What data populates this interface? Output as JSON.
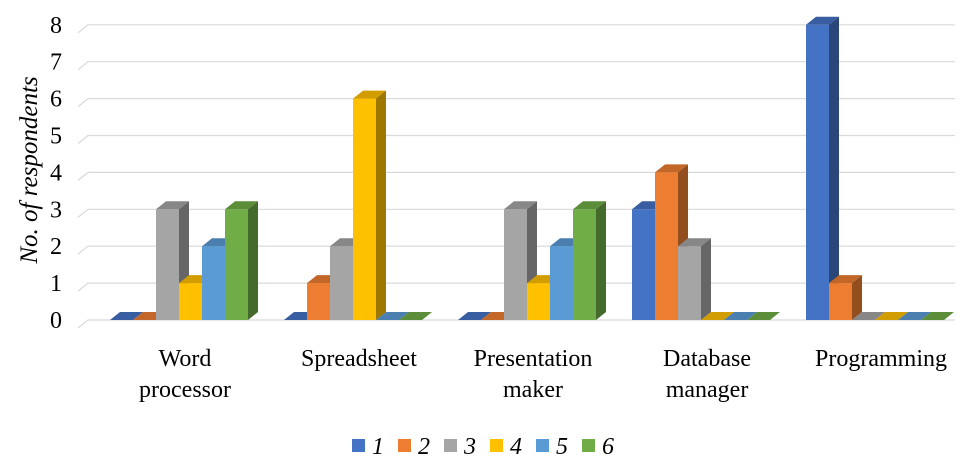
{
  "chart_data": {
    "type": "bar",
    "style": "3d-clustered-column",
    "ylabel": "No. of respondents",
    "xlabel": "",
    "ylim": [
      0,
      8
    ],
    "yticks": [
      "0",
      "1",
      "2",
      "3",
      "4",
      "5",
      "6",
      "7",
      "8"
    ],
    "grid": true,
    "legend_position": "bottom",
    "categories": [
      [
        "Word",
        "processor"
      ],
      [
        "Spreadsheet"
      ],
      [
        "Presentation",
        "maker"
      ],
      [
        "Database",
        "manager"
      ],
      [
        "Programming"
      ]
    ],
    "series": [
      {
        "name": "1",
        "color": "#4472c4",
        "values": [
          0,
          0,
          0,
          3,
          8
        ]
      },
      {
        "name": "2",
        "color": "#ed7d31",
        "values": [
          0,
          1,
          0,
          4,
          1
        ]
      },
      {
        "name": "3",
        "color": "#a5a5a5",
        "values": [
          3,
          2,
          3,
          2,
          0
        ]
      },
      {
        "name": "4",
        "color": "#ffc000",
        "values": [
          1,
          6,
          1,
          0,
          0
        ]
      },
      {
        "name": "5",
        "color": "#5b9bd5",
        "values": [
          2,
          0,
          2,
          0,
          0
        ]
      },
      {
        "name": "6",
        "color": "#70ad47",
        "values": [
          3,
          0,
          3,
          0,
          0
        ]
      }
    ]
  }
}
